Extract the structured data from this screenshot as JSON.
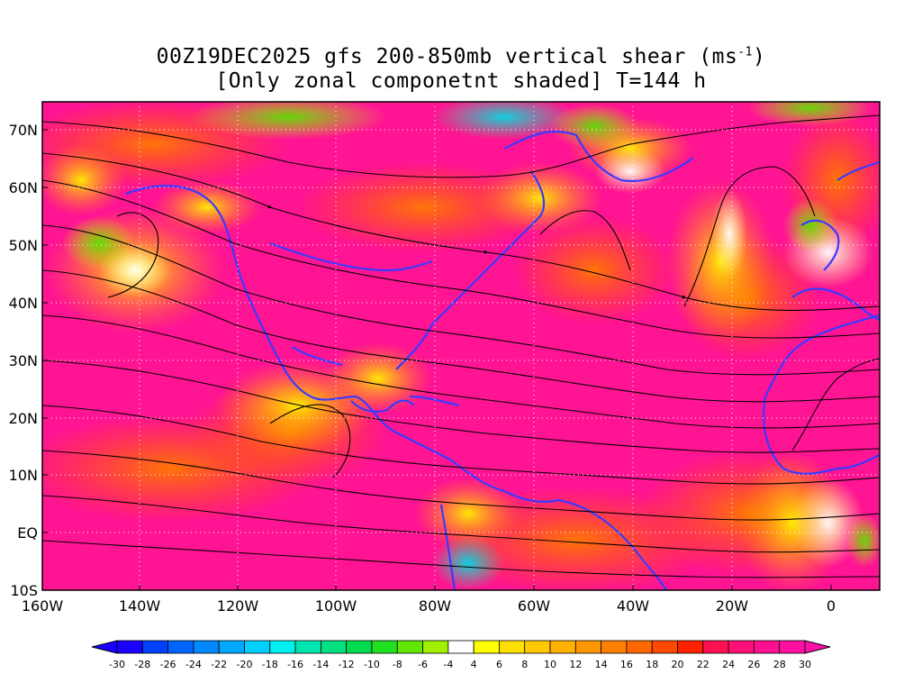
{
  "title": {
    "line1_prefix": "00Z19DEC2025 gfs 200-850mb vertical shear (ms",
    "line1_sup": "-1",
    "line1_suffix": ")",
    "line2": "[Only zonal componetnt shaded] T=144 h"
  },
  "map": {
    "lat_labels": [
      "70N",
      "60N",
      "50N",
      "40N",
      "30N",
      "20N",
      "10N",
      "EQ",
      "10S"
    ],
    "lon_labels": [
      "160W",
      "140W",
      "120W",
      "100W",
      "80W",
      "60W",
      "40W",
      "20W",
      "0"
    ],
    "frame_color": "#000000",
    "coast_color": "#3a3aff",
    "streamline_color": "#000000",
    "grid_color": "#ffffff"
  },
  "colorbar": {
    "ticks": [
      "-30",
      "-28",
      "-26",
      "-24",
      "-22",
      "-20",
      "-18",
      "-16",
      "-14",
      "-12",
      "-10",
      "-8",
      "-6",
      "-4",
      "4",
      "6",
      "8",
      "10",
      "12",
      "14",
      "16",
      "18",
      "20",
      "22",
      "24",
      "26",
      "28",
      "30"
    ],
    "colors": [
      "#1a00ff",
      "#0040ff",
      "#0064ff",
      "#0088ff",
      "#00a8ff",
      "#00d0ff",
      "#00f0f0",
      "#00e6b0",
      "#00e080",
      "#00dc50",
      "#20e020",
      "#60e800",
      "#a0f000",
      "#ffffff",
      "#ffff00",
      "#ffe000",
      "#ffc800",
      "#ffb000",
      "#ff9800",
      "#ff8000",
      "#ff6800",
      "#ff4800",
      "#ff2000",
      "#ff1050",
      "#ff1078",
      "#ff1090",
      "#ff10a0"
    ],
    "left_arrow_color": "#1a00ff",
    "right_arrow_color": "#ff10a8"
  }
}
